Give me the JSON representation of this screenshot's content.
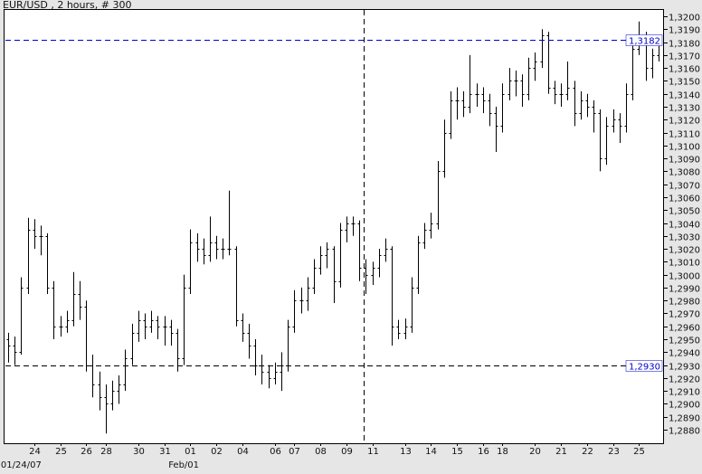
{
  "title": "EUR/USD , 2 hours, # 300",
  "chart_data": {
    "type": "ohlc",
    "title": "EUR/USD , 2 hours, # 300",
    "ylim": [
      1.288,
      1.32
    ],
    "ytick_step": 0.001,
    "ytick_labels": [
      "1,3200",
      "1,3190",
      "1,3180",
      "1,3170",
      "1,3160",
      "1,3150",
      "1,3140",
      "1,3130",
      "1,3120",
      "1,3110",
      "1,3100",
      "1,3090",
      "1,3080",
      "1,3070",
      "1,3060",
      "1,3050",
      "1,3040",
      "1,3030",
      "1,3020",
      "1,3010",
      "1,3000",
      "1,2990",
      "1,2980",
      "1,2970",
      "1,2960",
      "1,2950",
      "1,2940",
      "1,2930",
      "1,2920",
      "1,2910",
      "1,2900",
      "1,2890",
      "1,2880"
    ],
    "xticks": [
      {
        "bar": 4,
        "label": "24"
      },
      {
        "bar": 8,
        "label": "25"
      },
      {
        "bar": 12,
        "label": "26"
      },
      {
        "bar": 15,
        "label": "28"
      },
      {
        "bar": 20,
        "label": "30"
      },
      {
        "bar": 24,
        "label": "31"
      },
      {
        "bar": 28,
        "label": "01"
      },
      {
        "bar": 32,
        "label": "02"
      },
      {
        "bar": 36,
        "label": "04"
      },
      {
        "bar": 41,
        "label": "06"
      },
      {
        "bar": 44,
        "label": "07"
      },
      {
        "bar": 48,
        "label": "08"
      },
      {
        "bar": 52,
        "label": "09"
      },
      {
        "bar": 56,
        "label": "11"
      },
      {
        "bar": 61,
        "label": "13"
      },
      {
        "bar": 65,
        "label": "14"
      },
      {
        "bar": 69,
        "label": "15"
      },
      {
        "bar": 73,
        "label": "16"
      },
      {
        "bar": 76,
        "label": "18"
      },
      {
        "bar": 81,
        "label": "20"
      },
      {
        "bar": 85,
        "label": "21"
      },
      {
        "bar": 89,
        "label": "22"
      },
      {
        "bar": 93,
        "label": "23"
      },
      {
        "bar": 97,
        "label": "25"
      }
    ],
    "xlabels_secondary": [
      {
        "bar": 2,
        "label": "01/24/07"
      },
      {
        "bar": 27,
        "label": "Feb/01"
      }
    ],
    "last_price": {
      "value": 1.3182,
      "label": "1,3182",
      "color": "#0000cc"
    },
    "crosshair": {
      "price": 1.293,
      "label": "1,2930",
      "bar": 54.6,
      "color": "#0000cc"
    },
    "bar_color": "#000000",
    "bars_ohlc": [
      [
        1.295,
        1.2955,
        1.2932,
        1.2945
      ],
      [
        1.2945,
        1.2952,
        1.293,
        1.294
      ],
      [
        1.294,
        1.2998,
        1.2938,
        1.299
      ],
      [
        1.299,
        1.3044,
        1.2985,
        1.3035
      ],
      [
        1.3035,
        1.3043,
        1.302,
        1.303
      ],
      [
        1.303,
        1.3038,
        1.3015,
        1.303
      ],
      [
        1.303,
        1.3032,
        1.2985,
        1.299
      ],
      [
        1.299,
        1.2995,
        1.295,
        1.296
      ],
      [
        1.296,
        1.2968,
        1.2952,
        1.296
      ],
      [
        1.296,
        1.2972,
        1.2955,
        1.2965
      ],
      [
        1.2965,
        1.3002,
        1.296,
        1.2985
      ],
      [
        1.2985,
        1.2995,
        1.2965,
        1.2975
      ],
      [
        1.2975,
        1.298,
        1.2925,
        1.293
      ],
      [
        1.293,
        1.2938,
        1.2905,
        1.2915
      ],
      [
        1.2915,
        1.2925,
        1.2895,
        1.2905
      ],
      [
        1.2905,
        1.2915,
        1.2877,
        1.29
      ],
      [
        1.29,
        1.2918,
        1.2895,
        1.291
      ],
      [
        1.291,
        1.2922,
        1.29,
        1.2915
      ],
      [
        1.2915,
        1.2942,
        1.291,
        1.2935
      ],
      [
        1.2935,
        1.2962,
        1.293,
        1.2955
      ],
      [
        1.2955,
        1.2972,
        1.2948,
        1.2965
      ],
      [
        1.2965,
        1.297,
        1.295,
        1.296
      ],
      [
        1.296,
        1.2972,
        1.2955,
        1.2965
      ],
      [
        1.2965,
        1.2968,
        1.295,
        1.296
      ],
      [
        1.296,
        1.2968,
        1.2945,
        1.296
      ],
      [
        1.296,
        1.2965,
        1.2945,
        1.2955
      ],
      [
        1.2955,
        1.2958,
        1.2925,
        1.2935
      ],
      [
        1.2935,
        1.3,
        1.293,
        1.299
      ],
      [
        1.299,
        1.3035,
        1.2985,
        1.3025
      ],
      [
        1.3025,
        1.3032,
        1.301,
        1.302
      ],
      [
        1.302,
        1.3028,
        1.3008,
        1.3015
      ],
      [
        1.3015,
        1.3045,
        1.301,
        1.3025
      ],
      [
        1.3025,
        1.303,
        1.3012,
        1.302
      ],
      [
        1.302,
        1.3028,
        1.3012,
        1.302
      ],
      [
        1.302,
        1.3065,
        1.3015,
        1.302
      ],
      [
        1.302,
        1.3022,
        1.296,
        1.2965
      ],
      [
        1.2965,
        1.297,
        1.2948,
        1.2955
      ],
      [
        1.2955,
        1.2962,
        1.2935,
        1.2945
      ],
      [
        1.2945,
        1.295,
        1.2922,
        1.293
      ],
      [
        1.293,
        1.2938,
        1.2915,
        1.2925
      ],
      [
        1.2925,
        1.293,
        1.2912,
        1.292
      ],
      [
        1.292,
        1.2932,
        1.2915,
        1.2925
      ],
      [
        1.2925,
        1.294,
        1.291,
        1.293
      ],
      [
        1.293,
        1.2965,
        1.2925,
        1.296
      ],
      [
        1.296,
        1.2988,
        1.2955,
        1.298
      ],
      [
        1.298,
        1.299,
        1.297,
        1.298
      ],
      [
        1.298,
        1.2998,
        1.2972,
        1.299
      ],
      [
        1.299,
        1.3012,
        1.2985,
        1.3005
      ],
      [
        1.3005,
        1.3022,
        1.3,
        1.3015
      ],
      [
        1.3015,
        1.3025,
        1.3005,
        1.302
      ],
      [
        1.302,
        1.3022,
        1.2978,
        1.2995
      ],
      [
        1.2995,
        1.304,
        1.299,
        1.3035
      ],
      [
        1.3035,
        1.3045,
        1.3025,
        1.304
      ],
      [
        1.304,
        1.3045,
        1.303,
        1.304
      ],
      [
        1.304,
        1.3042,
        1.2995,
        1.3005
      ],
      [
        1.3005,
        1.3012,
        1.2985,
        1.3
      ],
      [
        1.3,
        1.301,
        1.2992,
        1.3005
      ],
      [
        1.3005,
        1.302,
        1.2998,
        1.3015
      ],
      [
        1.3015,
        1.3028,
        1.301,
        1.302
      ],
      [
        1.302,
        1.3022,
        1.2945,
        1.296
      ],
      [
        1.296,
        1.2965,
        1.295,
        1.2955
      ],
      [
        1.2955,
        1.2966,
        1.295,
        1.296
      ],
      [
        1.296,
        1.2998,
        1.2955,
        1.299
      ],
      [
        1.299,
        1.303,
        1.2985,
        1.3025
      ],
      [
        1.3025,
        1.304,
        1.302,
        1.3035
      ],
      [
        1.3035,
        1.3048,
        1.3028,
        1.304
      ],
      [
        1.304,
        1.3088,
        1.3035,
        1.308
      ],
      [
        1.308,
        1.312,
        1.3075,
        1.311
      ],
      [
        1.311,
        1.3142,
        1.3105,
        1.3135
      ],
      [
        1.3135,
        1.3145,
        1.312,
        1.3135
      ],
      [
        1.3135,
        1.3142,
        1.3122,
        1.313
      ],
      [
        1.313,
        1.317,
        1.3125,
        1.314
      ],
      [
        1.314,
        1.3148,
        1.313,
        1.314
      ],
      [
        1.314,
        1.3145,
        1.3125,
        1.3135
      ],
      [
        1.3135,
        1.314,
        1.3115,
        1.3125
      ],
      [
        1.3125,
        1.313,
        1.3095,
        1.3115
      ],
      [
        1.3115,
        1.3148,
        1.311,
        1.314
      ],
      [
        1.314,
        1.316,
        1.3135,
        1.315
      ],
      [
        1.315,
        1.3158,
        1.3138,
        1.315
      ],
      [
        1.315,
        1.3155,
        1.313,
        1.314
      ],
      [
        1.314,
        1.3168,
        1.3135,
        1.316
      ],
      [
        1.316,
        1.3172,
        1.315,
        1.3165
      ],
      [
        1.3165,
        1.319,
        1.316,
        1.3185
      ],
      [
        1.3185,
        1.3188,
        1.314,
        1.3145
      ],
      [
        1.3145,
        1.315,
        1.3132,
        1.314
      ],
      [
        1.314,
        1.3148,
        1.313,
        1.314
      ],
      [
        1.314,
        1.3165,
        1.3135,
        1.3145
      ],
      [
        1.3145,
        1.315,
        1.3115,
        1.3125
      ],
      [
        1.3125,
        1.3142,
        1.312,
        1.3135
      ],
      [
        1.3135,
        1.314,
        1.3122,
        1.313
      ],
      [
        1.313,
        1.3135,
        1.311,
        1.3125
      ],
      [
        1.3125,
        1.3128,
        1.308,
        1.309
      ],
      [
        1.309,
        1.3122,
        1.3085,
        1.3115
      ],
      [
        1.3115,
        1.3128,
        1.311,
        1.312
      ],
      [
        1.312,
        1.3125,
        1.3102,
        1.3115
      ],
      [
        1.3115,
        1.3148,
        1.311,
        1.314
      ],
      [
        1.314,
        1.3185,
        1.3135,
        1.3175
      ],
      [
        1.3175,
        1.3196,
        1.317,
        1.3185
      ],
      [
        1.3185,
        1.3188,
        1.315,
        1.316
      ],
      [
        1.316,
        1.3175,
        1.3152,
        1.317
      ],
      [
        1.317,
        1.3185,
        1.3165,
        1.3182
      ]
    ]
  }
}
